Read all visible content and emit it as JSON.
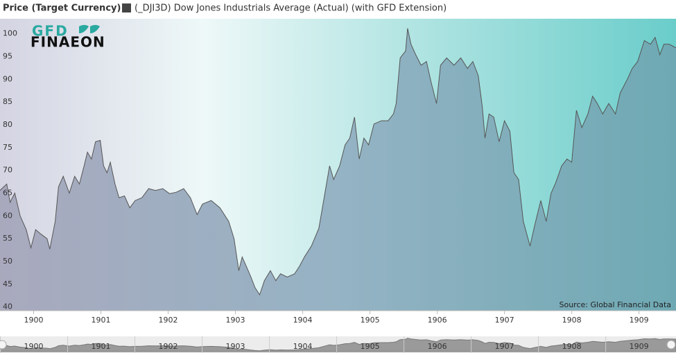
{
  "chart_data": {
    "type": "area",
    "title": "Price (Target Currency)",
    "logo": {
      "top": "GFD",
      "bottom": "FINAEON"
    },
    "source": "Source: Global Financial Data",
    "series": [
      {
        "name": "(_DJI3D) Dow Jones Industrials Average (Actual) (with GFD Extension)",
        "color": "#555555",
        "x": [
          1899.5,
          1899.6,
          1899.65,
          1899.72,
          1899.8,
          1899.89,
          1899.96,
          1900.03,
          1900.11,
          1900.2,
          1900.24,
          1900.32,
          1900.37,
          1900.44,
          1900.53,
          1900.61,
          1900.68,
          1900.75,
          1900.8,
          1900.86,
          1900.92,
          1900.99,
          1901.04,
          1901.09,
          1901.14,
          1901.21,
          1901.27,
          1901.35,
          1901.43,
          1901.51,
          1901.61,
          1901.71,
          1901.81,
          1901.92,
          1902.02,
          1902.12,
          1902.23,
          1902.33,
          1902.43,
          1902.51,
          1902.64,
          1902.77,
          1902.9,
          1902.98,
          1903.05,
          1903.1,
          1903.16,
          1903.23,
          1903.29,
          1903.36,
          1903.43,
          1903.52,
          1903.6,
          1903.67,
          1903.77,
          1903.88,
          1903.95,
          1904.03,
          1904.13,
          1904.24,
          1904.32,
          1904.4,
          1904.46,
          1904.55,
          1904.63,
          1904.7,
          1904.77,
          1904.84,
          1904.91,
          1904.98,
          1905.06,
          1905.17,
          1905.27,
          1905.35,
          1905.39,
          1905.45,
          1905.53,
          1905.56,
          1905.61,
          1905.68,
          1905.76,
          1905.84,
          1905.91,
          1905.99,
          1906.05,
          1906.14,
          1906.25,
          1906.35,
          1906.45,
          1906.53,
          1906.61,
          1906.67,
          1906.71,
          1906.77,
          1906.84,
          1906.92,
          1907.0,
          1907.08,
          1907.14,
          1907.21,
          1907.28,
          1907.38,
          1907.45,
          1907.54,
          1907.62,
          1907.69,
          1907.76,
          1907.85,
          1907.93,
          1908.0,
          1908.07,
          1908.15,
          1908.24,
          1908.31,
          1908.38,
          1908.46,
          1908.55,
          1908.65,
          1908.72,
          1908.83,
          1908.9,
          1908.98,
          1909.08,
          1909.17,
          1909.24,
          1909.31,
          1909.37,
          1909.45,
          1909.55
        ],
        "values": [
          65.6,
          67,
          63,
          65,
          60,
          57,
          53,
          57,
          56,
          55,
          52.7,
          58.8,
          66.4,
          68.7,
          65,
          68.7,
          67,
          71,
          74,
          72.5,
          76.3,
          76.6,
          71,
          69.5,
          71.8,
          67,
          64,
          64.4,
          61.8,
          63.4,
          64,
          66,
          65.6,
          66,
          64.9,
          65.2,
          66,
          64,
          60.3,
          62.6,
          63.4,
          61.8,
          58.8,
          55,
          48,
          51,
          49,
          46.6,
          44.3,
          42.7,
          45.8,
          48,
          45.8,
          47.3,
          46.6,
          47.3,
          48.9,
          51.1,
          53.4,
          57.3,
          64.1,
          71,
          68,
          71,
          75.6,
          77.1,
          81.7,
          72.5,
          77.1,
          75.6,
          80.2,
          80.9,
          80.9,
          82.4,
          84.7,
          94.7,
          96.2,
          101.2,
          97.7,
          95.4,
          93.1,
          93.9,
          89.3,
          84.7,
          93.1,
          94.7,
          93.1,
          94.7,
          92.4,
          93.9,
          90.8,
          84,
          77.1,
          82.4,
          81.7,
          76.3,
          80.9,
          78.6,
          69.5,
          68,
          58.8,
          53.4,
          58,
          63.4,
          58.8,
          64.9,
          67.2,
          71,
          72.5,
          71.8,
          83.2,
          79.4,
          82.4,
          86.3,
          84.7,
          82.4,
          84.7,
          82.4,
          87,
          90.1,
          92.4,
          93.9,
          98.5,
          97.7,
          99.2,
          95.4,
          97.7,
          97.7,
          96.9
        ]
      }
    ],
    "xlim": [
      1899.5,
      1909.55
    ],
    "xticks": [
      1900,
      1901,
      1902,
      1903,
      1904,
      1905,
      1906,
      1907,
      1908,
      1909
    ],
    "ylim": [
      39.2,
      103.3
    ],
    "yticks": [
      40,
      45,
      50,
      55,
      60,
      65,
      70,
      75,
      80,
      85,
      90,
      95,
      100
    ]
  }
}
